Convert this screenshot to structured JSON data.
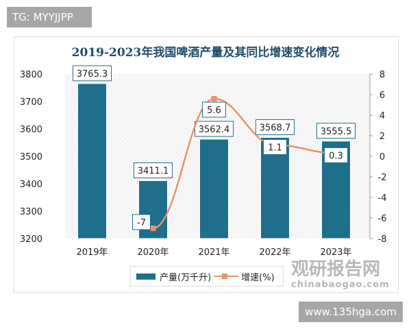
{
  "tag": "TG: MYYJJPP",
  "website": "www.135hga.com",
  "watermark": {
    "cn": "观研报告网",
    "en": "chinabaogao.com"
  },
  "chart_data": {
    "type": "bar+line",
    "title": "2019-2023年我国啤酒产量及其同比增速变化情况",
    "categories": [
      "2019年",
      "2020年",
      "2021年",
      "2022年",
      "2023年"
    ],
    "series": [
      {
        "name": "产量(万千升)",
        "type": "bar",
        "axis": "left",
        "values": [
          3765.3,
          3411.1,
          3562.4,
          3568.7,
          3555.5
        ],
        "color": "#1f6e8c"
      },
      {
        "name": "增速(%)",
        "type": "line",
        "axis": "right",
        "values": [
          null,
          -7,
          5.6,
          1.1,
          0.3
        ],
        "color": "#e8936a"
      }
    ],
    "ylim_left": [
      3200,
      3800
    ],
    "yticks_left": [
      3200,
      3300,
      3400,
      3500,
      3600,
      3700,
      3800
    ],
    "ylim_right": [
      -8,
      8
    ],
    "yticks_right": [
      -8,
      -6,
      -4,
      -2,
      0,
      2,
      4,
      6,
      8
    ],
    "legend": "bottom"
  }
}
